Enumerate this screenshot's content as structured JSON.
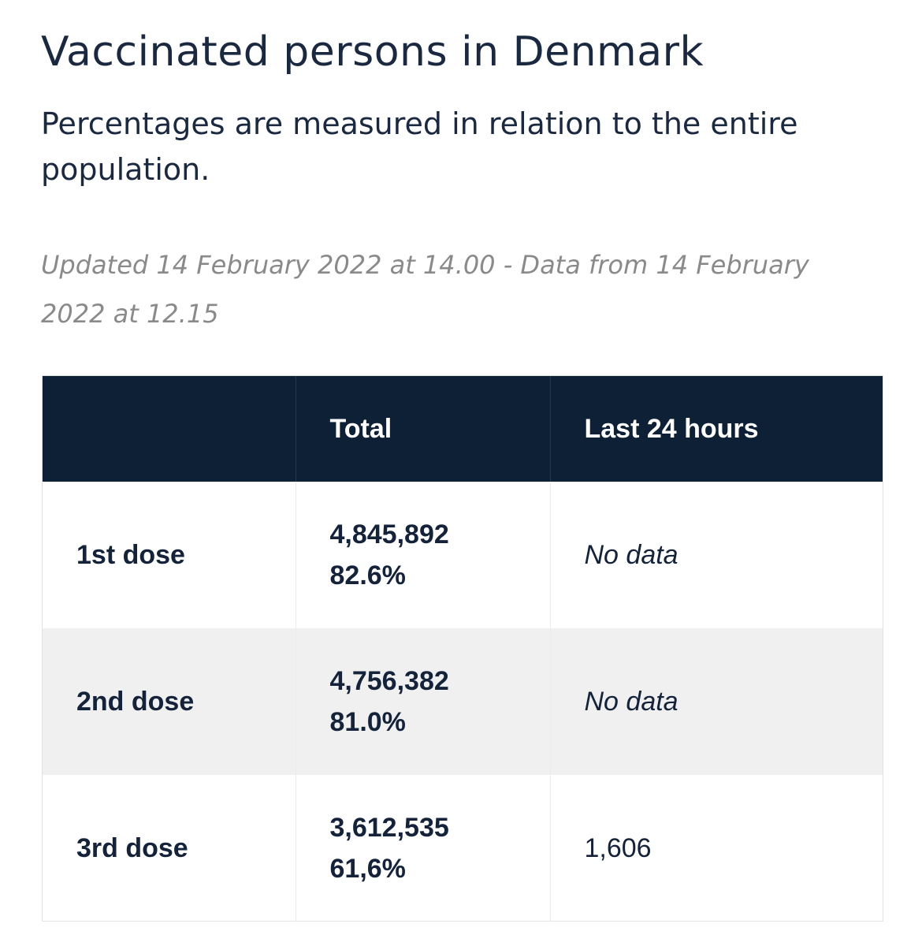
{
  "header": {
    "title": "Vaccinated persons in Denmark",
    "subtitle": "Percentages are measured in relation to the entire population.",
    "updated": "Updated 14 February 2022 at 14.00 - Data from 14 February 2022 at 12.15"
  },
  "table": {
    "columns": [
      "",
      "Total",
      "Last 24 hours"
    ],
    "rows": [
      {
        "dose": "1st dose",
        "total_count": "4,845,892",
        "total_pct": "82.6%",
        "last_24h": "No data"
      },
      {
        "dose": "2nd dose",
        "total_count": "4,756,382",
        "total_pct": "81.0%",
        "last_24h": "No data"
      },
      {
        "dose": "3rd dose",
        "total_count": "3,612,535",
        "total_pct": "61,6%",
        "last_24h": "1,606"
      }
    ]
  },
  "colors": {
    "header_bg": "#0d2035",
    "title_text": "#1b2940",
    "muted_text": "#8a8a8a",
    "row_shade": "#f0f0f0"
  }
}
